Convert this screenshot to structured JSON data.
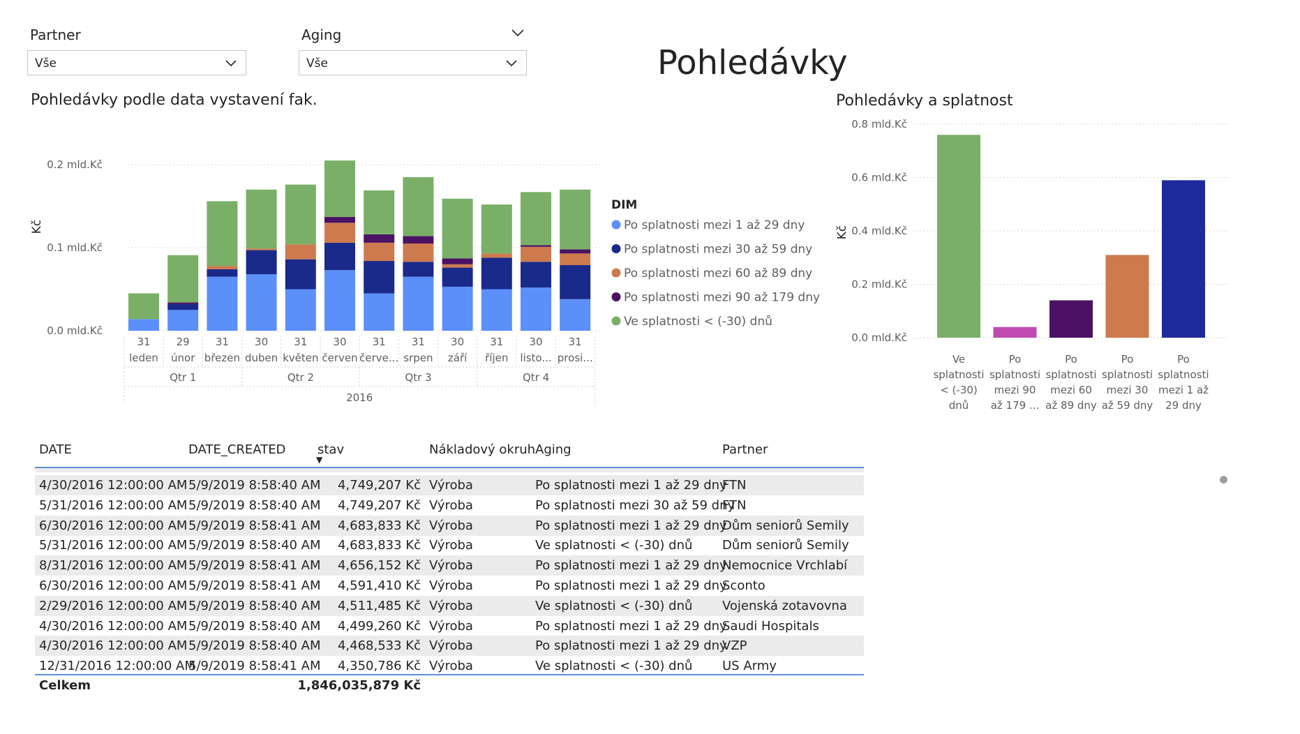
{
  "page_title": "Pohledávky",
  "slicers": [
    {
      "label": "Partner",
      "value": "Vše"
    },
    {
      "label": "Aging",
      "value": "Vše"
    }
  ],
  "chart_data": [
    {
      "type": "bar",
      "stacked": true,
      "title": "Pohledávky podle data vystavení fak.",
      "ylabel": "Kč",
      "xlabel": "",
      "ylim": [
        0,
        0.2
      ],
      "y_ticks": [
        "0.0 mld.Kč",
        "0.1 mld.Kč",
        "0.2 mld.Kč"
      ],
      "y_tick_values": [
        0,
        0.1,
        0.2
      ],
      "categories_day": [
        "31",
        "29",
        "31",
        "30",
        "31",
        "30",
        "31",
        "31",
        "30",
        "31",
        "30",
        "31"
      ],
      "categories": [
        "leden",
        "únor",
        "březen",
        "duben",
        "květen",
        "červen",
        "červe...",
        "srpen",
        "září",
        "říjen",
        "listo...",
        "prosi..."
      ],
      "quarters": [
        "Qtr 1",
        "Qtr 2",
        "Qtr 3",
        "Qtr 4"
      ],
      "year": "2016",
      "legend_title": "DIM",
      "series": [
        {
          "name": "Po splatnosti mezi 1 až 29 dny",
          "color": "#5b8ff9",
          "values": [
            0.014,
            0.025,
            0.065,
            0.068,
            0.05,
            0.073,
            0.045,
            0.065,
            0.053,
            0.05,
            0.052,
            0.038
          ]
        },
        {
          "name": "Po splatnosti mezi 30 až 59 dny",
          "color": "#1a2a8a",
          "values": [
            0.0,
            0.007,
            0.009,
            0.029,
            0.036,
            0.033,
            0.039,
            0.018,
            0.023,
            0.038,
            0.031,
            0.041
          ]
        },
        {
          "name": "Po splatnosti mezi 60 až 89 dny",
          "color": "#cd7a4e",
          "values": [
            0.0,
            0.0,
            0.004,
            0.002,
            0.018,
            0.024,
            0.022,
            0.022,
            0.004,
            0.005,
            0.018,
            0.014
          ]
        },
        {
          "name": "Po splatnosti mezi 90 až 179 dny",
          "color": "#4b1264",
          "values": [
            0.0,
            0.002,
            0.0,
            0.0,
            0.0,
            0.007,
            0.01,
            0.009,
            0.007,
            0.0,
            0.002,
            0.005
          ]
        },
        {
          "name": "Ve splatnosti < (-30) dnů",
          "color": "#7aaf68",
          "values": [
            0.031,
            0.057,
            0.078,
            0.071,
            0.072,
            0.068,
            0.053,
            0.071,
            0.072,
            0.059,
            0.064,
            0.072
          ]
        }
      ]
    },
    {
      "type": "bar",
      "title": "Pohledávky a splatnost",
      "ylabel": "Kč",
      "xlabel": "",
      "ylim": [
        0,
        0.8
      ],
      "y_ticks": [
        "0.0 mld.Kč",
        "0.2 mld.Kč",
        "0.4 mld.Kč",
        "0.6 mld.Kč",
        "0.8 mld.Kč"
      ],
      "y_tick_values": [
        0,
        0.2,
        0.4,
        0.6,
        0.8
      ],
      "categories": [
        [
          "Ve",
          "splatnosti",
          "< (-30)",
          "dnů"
        ],
        [
          "Po",
          "splatnosti",
          "mezi 90",
          "až 179 ..."
        ],
        [
          "Po",
          "splatnosti",
          "mezi 60",
          "až 89 dny"
        ],
        [
          "Po",
          "splatnosti",
          "mezi 30",
          "až 59 dny"
        ],
        [
          "Po",
          "splatnosti",
          "mezi 1 až",
          "29 dny"
        ]
      ],
      "values": [
        0.76,
        0.04,
        0.14,
        0.31,
        0.59
      ],
      "colors": [
        "#7aaf68",
        "#c04bb0",
        "#4b1264",
        "#cd7a4e",
        "#1f2a9a"
      ]
    }
  ],
  "table": {
    "columns": [
      "DATE",
      "DATE_CREATED",
      "stav",
      "Nákladový okruh",
      "Aging",
      "Partner"
    ],
    "sort_indicator": "▼",
    "rows": [
      [
        "4/30/2016 12:00:00 AM",
        "5/9/2019 8:58:40 AM",
        "4,749,207 Kč",
        "Výroba",
        "Po splatnosti mezi 1 až 29 dny",
        "FTN"
      ],
      [
        "5/31/2016 12:00:00 AM",
        "5/9/2019 8:58:40 AM",
        "4,749,207 Kč",
        "Výroba",
        "Po splatnosti mezi 30 až 59 dny",
        "FTN"
      ],
      [
        "6/30/2016 12:00:00 AM",
        "5/9/2019 8:58:41 AM",
        "4,683,833 Kč",
        "Výroba",
        "Po splatnosti mezi 1 až 29 dny",
        "Dům seniorů Semily"
      ],
      [
        "5/31/2016 12:00:00 AM",
        "5/9/2019 8:58:40 AM",
        "4,683,833 Kč",
        "Výroba",
        "Ve splatnosti < (-30) dnů",
        "Dům seniorů Semily"
      ],
      [
        "8/31/2016 12:00:00 AM",
        "5/9/2019 8:58:41 AM",
        "4,656,152 Kč",
        "Výroba",
        "Po splatnosti mezi 1 až 29 dny",
        "Nemocnice Vrchlabí"
      ],
      [
        "6/30/2016 12:00:00 AM",
        "5/9/2019 8:58:41 AM",
        "4,591,410 Kč",
        "Výroba",
        "Po splatnosti mezi 1 až 29 dny",
        "Sconto"
      ],
      [
        "2/29/2016 12:00:00 AM",
        "5/9/2019 8:58:40 AM",
        "4,511,485 Kč",
        "Výroba",
        "Ve splatnosti < (-30) dnů",
        "Vojenská zotavovna"
      ],
      [
        "4/30/2016 12:00:00 AM",
        "5/9/2019 8:58:40 AM",
        "4,499,260 Kč",
        "Výroba",
        "Po splatnosti mezi 1 až 29 dny",
        "Saudi Hospitals"
      ],
      [
        "4/30/2016 12:00:00 AM",
        "5/9/2019 8:58:40 AM",
        "4,468,533 Kč",
        "Výroba",
        "Po splatnosti mezi 1 až 29 dny",
        "VZP"
      ],
      [
        "12/31/2016 12:00:00 AM",
        "5/9/2019 8:58:41 AM",
        "4,350,786 Kč",
        "Výroba",
        "Ve splatnosti < (-30) dnů",
        "US Army"
      ]
    ],
    "total_label": "Celkem",
    "total_value": "1,846,035,879 Kč"
  }
}
